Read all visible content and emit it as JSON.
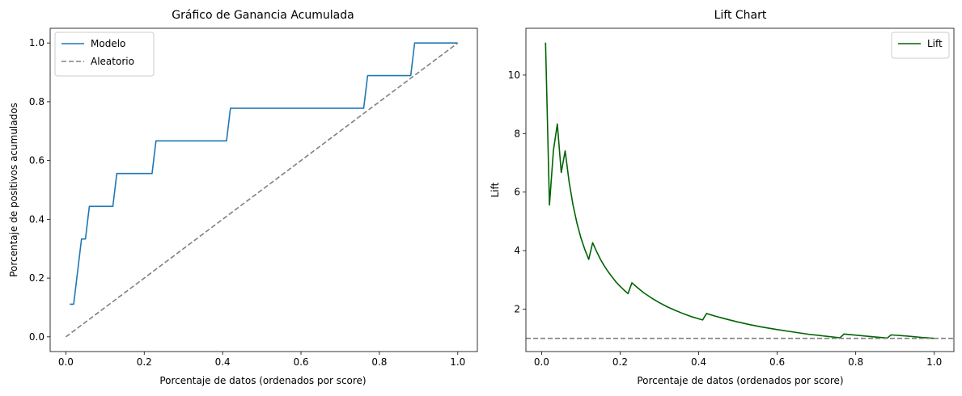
{
  "chart_data": [
    {
      "type": "line",
      "title": "Gráfico de Ganancia Acumulada",
      "xlabel": "Porcentaje de datos (ordenados por score)",
      "ylabel": "Porcentaje de positivos acumulados",
      "xlim": [
        -0.04,
        1.05
      ],
      "ylim": [
        -0.05,
        1.05
      ],
      "xticks": [
        0.0,
        0.2,
        0.4,
        0.6,
        0.8,
        1.0
      ],
      "xtick_labels": [
        "0.0",
        "0.2",
        "0.4",
        "0.6",
        "0.8",
        "1.0"
      ],
      "yticks": [
        0.0,
        0.2,
        0.4,
        0.6,
        0.8,
        1.0
      ],
      "ytick_labels": [
        "0.0",
        "0.2",
        "0.4",
        "0.6",
        "0.8",
        "1.0"
      ],
      "grid": false,
      "legend": "upper-left",
      "series": [
        {
          "name": "Modelo",
          "color": "#1f77b4",
          "style": "solid",
          "x": [
            0.01,
            0.02,
            0.04,
            0.05,
            0.06,
            0.12,
            0.13,
            0.22,
            0.23,
            0.41,
            0.42,
            0.76,
            0.77,
            0.88,
            0.89,
            1.0
          ],
          "y": [
            0.111,
            0.111,
            0.333,
            0.333,
            0.444,
            0.444,
            0.556,
            0.556,
            0.667,
            0.667,
            0.778,
            0.778,
            0.889,
            0.889,
            1.0,
            1.0
          ]
        },
        {
          "name": "Aleatorio",
          "color": "#808080",
          "style": "dashed",
          "x": [
            0.0,
            1.0
          ],
          "y": [
            0.0,
            1.0
          ]
        }
      ]
    },
    {
      "type": "line",
      "title": "Lift Chart",
      "xlabel": "Porcentaje de datos (ordenados por score)",
      "ylabel": "Lift",
      "xlim": [
        -0.04,
        1.05
      ],
      "ylim": [
        0.55,
        11.6
      ],
      "xticks": [
        0.0,
        0.2,
        0.4,
        0.6,
        0.8,
        1.0
      ],
      "xtick_labels": [
        "0.0",
        "0.2",
        "0.4",
        "0.6",
        "0.8",
        "1.0"
      ],
      "yticks": [
        2,
        4,
        6,
        8,
        10
      ],
      "ytick_labels": [
        "2",
        "4",
        "6",
        "8",
        "10"
      ],
      "grid": false,
      "legend": "upper-right",
      "series": [
        {
          "name": "Lift",
          "color": "#006400",
          "style": "solid",
          "x": [
            0.01,
            0.02,
            0.03,
            0.04,
            0.05,
            0.06,
            0.07,
            0.08,
            0.09,
            0.1,
            0.11,
            0.12,
            0.13,
            0.14,
            0.15,
            0.16,
            0.17,
            0.18,
            0.19,
            0.2,
            0.21,
            0.22,
            0.23,
            0.24,
            0.26,
            0.28,
            0.3,
            0.32,
            0.34,
            0.36,
            0.38,
            0.4,
            0.41,
            0.42,
            0.44,
            0.47,
            0.5,
            0.53,
            0.56,
            0.6,
            0.64,
            0.68,
            0.72,
            0.76,
            0.77,
            0.8,
            0.84,
            0.88,
            0.89,
            0.93,
            0.97,
            1.0
          ],
          "y": [
            11.11,
            5.56,
            7.41,
            8.33,
            6.67,
            7.41,
            6.35,
            5.56,
            4.94,
            4.44,
            4.04,
            3.7,
            4.27,
            3.97,
            3.7,
            3.47,
            3.27,
            3.09,
            2.92,
            2.78,
            2.65,
            2.53,
            2.9,
            2.78,
            2.56,
            2.38,
            2.22,
            2.08,
            1.96,
            1.85,
            1.75,
            1.67,
            1.63,
            1.85,
            1.77,
            1.66,
            1.56,
            1.47,
            1.39,
            1.3,
            1.22,
            1.14,
            1.08,
            1.02,
            1.15,
            1.11,
            1.06,
            1.01,
            1.12,
            1.08,
            1.03,
            1.0
          ]
        },
        {
          "name": "",
          "color": "#808080",
          "style": "dashed",
          "x": [
            -0.04,
            1.05
          ],
          "y": [
            1.0,
            1.0
          ]
        }
      ]
    }
  ]
}
